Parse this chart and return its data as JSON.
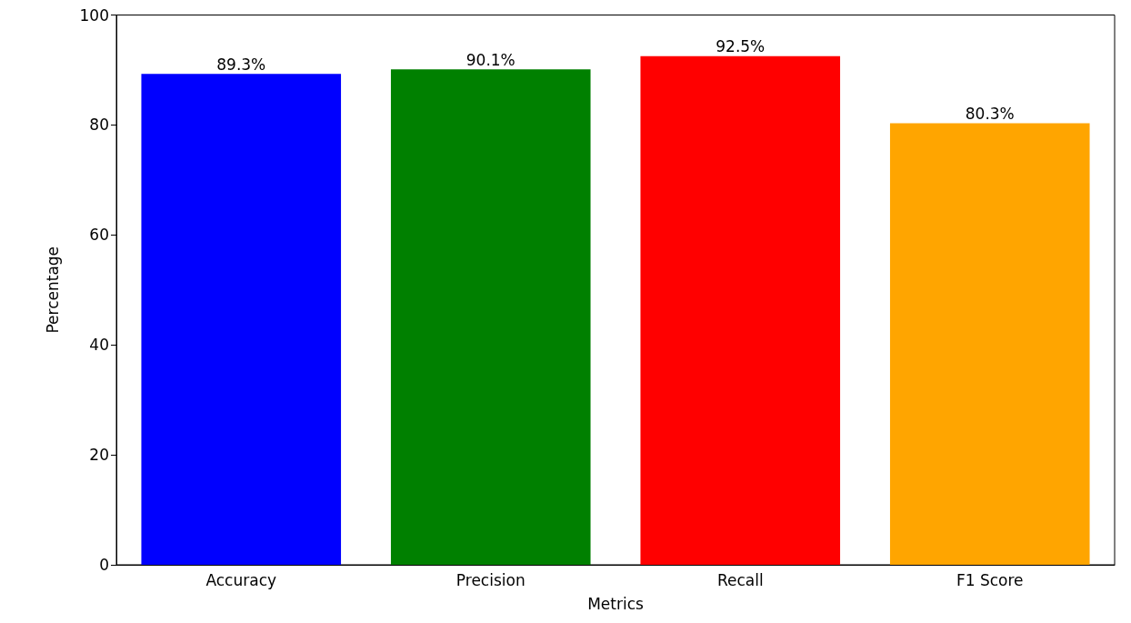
{
  "chart_data": {
    "type": "bar",
    "xlabel": "Metrics",
    "ylabel": "Percentage",
    "categories": [
      "Accuracy",
      "Precision",
      "Recall",
      "F1 Score"
    ],
    "values": [
      89.3,
      90.1,
      92.5,
      80.3
    ],
    "colors": [
      "#0000ff",
      "#008000",
      "#ff0000",
      "#ffa500"
    ],
    "value_labels": [
      "89.3%",
      "90.1%",
      "92.5%",
      "80.3%"
    ],
    "ylim": [
      0,
      100
    ],
    "yticks": [
      0,
      20,
      40,
      60,
      80,
      100
    ],
    "grid": false
  }
}
